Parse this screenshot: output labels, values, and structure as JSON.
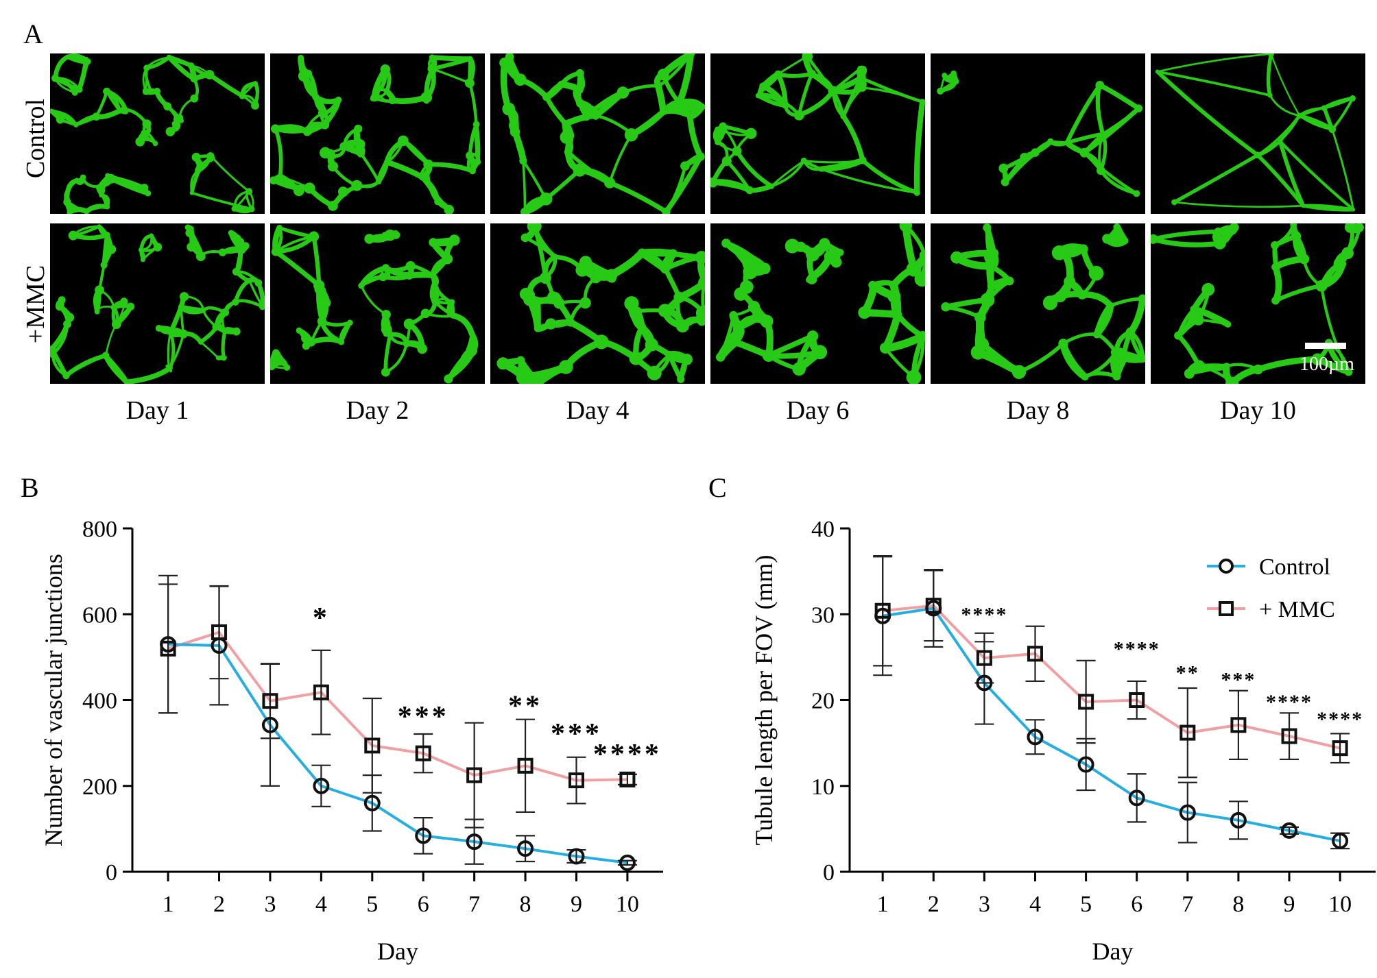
{
  "panel_a": {
    "letter": "A",
    "rows": [
      "Control",
      "+MMC"
    ],
    "columns": [
      "Day 1",
      "Day 2",
      "Day 4",
      "Day 6",
      "Day 8",
      "Day 10"
    ],
    "scale_bar_label": "100µm",
    "stain_color": "#2bdc16"
  },
  "panel_b": {
    "letter": "B"
  },
  "panel_c": {
    "letter": "C"
  },
  "colors": {
    "control": "#27aee0",
    "mmc": "#f0a0a3",
    "axis": "#000000"
  },
  "chart_data": [
    {
      "id": "B",
      "type": "line",
      "xlabel": "Day",
      "ylabel": "Number of vascular junctions",
      "x": [
        1,
        2,
        3,
        4,
        5,
        6,
        7,
        8,
        9,
        10
      ],
      "ylim": [
        0,
        800
      ],
      "yticks": [
        0,
        200,
        400,
        600,
        800
      ],
      "series": [
        {
          "name": "Control",
          "marker": "circle",
          "values": [
            530,
            527,
            342,
            200,
            160,
            84,
            70,
            54,
            36,
            21
          ],
          "errors": [
            160,
            138,
            142,
            48,
            65,
            42,
            52,
            30,
            15,
            5
          ]
        },
        {
          "name": "+ MMC",
          "marker": "square",
          "values": [
            520,
            558,
            398,
            418,
            294,
            276,
            225,
            247,
            213,
            215
          ],
          "errors": [
            150,
            108,
            87,
            98,
            110,
            45,
            122,
            108,
            54,
            12
          ]
        }
      ],
      "annotations": [
        {
          "x": 4,
          "y": 570,
          "text": "*"
        },
        {
          "x": 6,
          "y": 340,
          "text": "***"
        },
        {
          "x": 8,
          "y": 365,
          "text": "**"
        },
        {
          "x": 9,
          "y": 300,
          "text": "***"
        },
        {
          "x": 10,
          "y": 252,
          "text": "****"
        }
      ]
    },
    {
      "id": "C",
      "type": "line",
      "xlabel": "Day",
      "ylabel": "Tubule length per FOV (mm)",
      "x": [
        1,
        2,
        3,
        4,
        5,
        6,
        7,
        8,
        9,
        10
      ],
      "ylim": [
        0,
        40
      ],
      "yticks": [
        0,
        10,
        20,
        30,
        40
      ],
      "legend_position": "top-right",
      "series": [
        {
          "name": "Control",
          "marker": "circle",
          "values": [
            29.8,
            30.7,
            22.0,
            15.7,
            12.5,
            8.6,
            6.9,
            6.0,
            4.8,
            3.6
          ],
          "errors": [
            6.9,
            4.5,
            4.8,
            2.0,
            3.0,
            2.8,
            3.5,
            2.2,
            0.4,
            0.9
          ]
        },
        {
          "name": "+ MMC",
          "marker": "square",
          "values": [
            30.4,
            31.0,
            24.9,
            25.4,
            19.8,
            20.0,
            16.2,
            17.1,
            15.8,
            14.4
          ],
          "errors": [
            6.4,
            4.1,
            2.9,
            3.2,
            4.8,
            2.2,
            5.2,
            4.0,
            2.7,
            1.7
          ]
        }
      ],
      "annotations": [
        {
          "x": 3,
          "y": 29.2,
          "text": "****"
        },
        {
          "x": 6,
          "y": 25.2,
          "text": "****"
        },
        {
          "x": 7,
          "y": 22.4,
          "text": "**"
        },
        {
          "x": 8,
          "y": 21.6,
          "text": "***"
        },
        {
          "x": 9,
          "y": 19.0,
          "text": "****"
        },
        {
          "x": 10,
          "y": 17.0,
          "text": "****"
        }
      ]
    }
  ]
}
